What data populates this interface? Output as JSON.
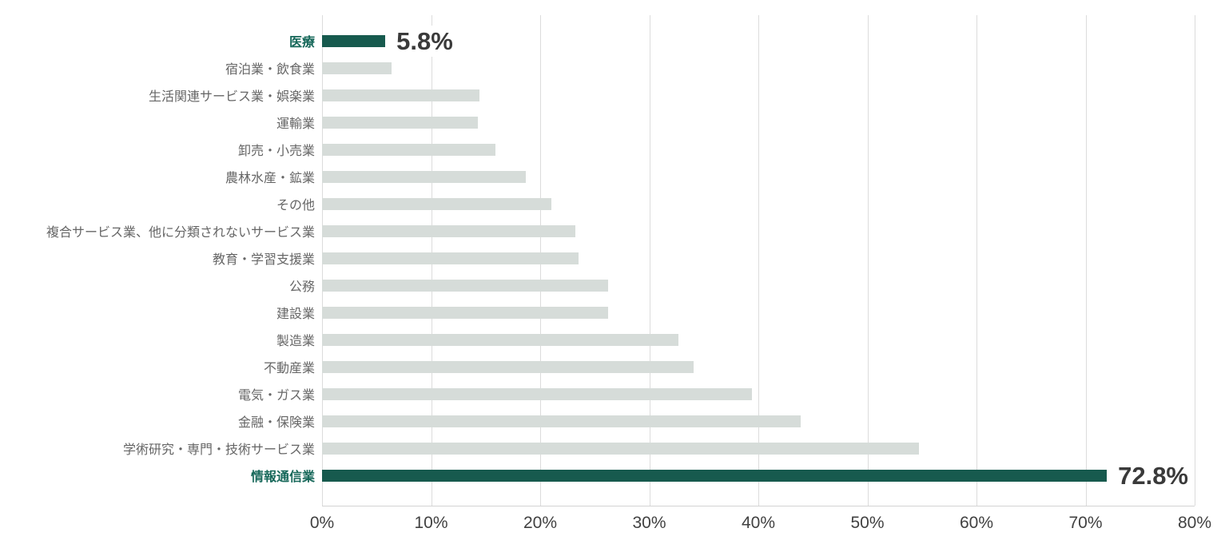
{
  "chart_data": {
    "type": "bar",
    "orientation": "horizontal",
    "title": "",
    "xlabel": "",
    "ylabel": "",
    "xlim": [
      0,
      80
    ],
    "x_tick_labels": [
      "0%",
      "10%",
      "20%",
      "30%",
      "40%",
      "50%",
      "60%",
      "70%",
      "80%"
    ],
    "grid": "vertical",
    "legend": "none",
    "categories": [
      "医療",
      "宿泊業・飲食業",
      "生活関連サービス業・娯楽業",
      "運輸業",
      "卸売・小売業",
      "農林水産・鉱業",
      "その他",
      "複合サービス業、他に分類されないサービス業",
      "教育・学習支援業",
      "公務",
      "建設業",
      "製造業",
      "不動産業",
      "電気・ガス業",
      "金融・保険業",
      "学術研究・専門・技術サービス業",
      "情報通信業"
    ],
    "values": [
      5.8,
      6.4,
      14.4,
      14.3,
      15.9,
      18.7,
      21.0,
      23.2,
      23.5,
      26.2,
      26.2,
      32.7,
      34.1,
      39.4,
      43.9,
      54.7,
      72.8
    ],
    "highlighted_indices": [
      0,
      16
    ],
    "data_labels": [
      {
        "index": 0,
        "text": "5.8%"
      },
      {
        "index": 16,
        "text": "72.8%"
      }
    ]
  },
  "colors": {
    "bar_default": "#d6dcd9",
    "bar_highlight": "#175a4e",
    "category_label": "#666666",
    "category_label_highlight": "#17685a",
    "value_label": "#3a3a3a",
    "tick_label": "#414141",
    "gridline": "#dcdcdc",
    "axis_line": "#d2d2d2"
  }
}
